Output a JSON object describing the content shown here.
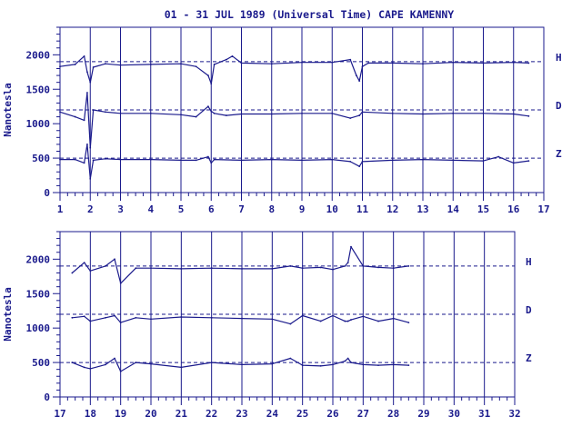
{
  "title": "01 - 31 JUL 1989 (Universal Time) CAPE KAMENNY",
  "colors": {
    "ink": "#1a1a8c",
    "background": "#ffffff"
  },
  "chart_data": [
    {
      "type": "line",
      "ylabel": "Nanotesla",
      "xlim": [
        1,
        17
      ],
      "ylim": [
        0,
        2400
      ],
      "x_ticks": [
        "1",
        "2",
        "3",
        "4",
        "5",
        "6",
        "7",
        "8",
        "9",
        "10",
        "11",
        "12",
        "13",
        "14",
        "15",
        "16",
        "17"
      ],
      "y_ticks": [
        "0",
        "500",
        "1000",
        "1500",
        "2000"
      ],
      "reference_levels": [
        1900,
        1200,
        500
      ],
      "series": [
        {
          "name": "H",
          "baseline": 1900,
          "x": [
            1.0,
            1.5,
            1.8,
            1.9,
            2.0,
            2.1,
            2.5,
            3.0,
            4.0,
            5.0,
            5.5,
            5.9,
            6.0,
            6.1,
            6.5,
            6.7,
            7.0,
            8.0,
            9.0,
            10.0,
            10.6,
            10.8,
            10.9,
            11.0,
            11.2,
            12.0,
            13.0,
            14.0,
            15.0,
            16.0,
            16.5
          ],
          "values": [
            1830,
            1860,
            1980,
            1750,
            1600,
            1820,
            1870,
            1850,
            1860,
            1870,
            1830,
            1700,
            1580,
            1860,
            1930,
            1980,
            1880,
            1870,
            1890,
            1890,
            1930,
            1700,
            1620,
            1830,
            1880,
            1880,
            1870,
            1890,
            1880,
            1890,
            1880
          ]
        },
        {
          "name": "D",
          "baseline": 1200,
          "x": [
            1.0,
            1.5,
            1.8,
            1.9,
            2.0,
            2.1,
            2.5,
            3.0,
            4.0,
            5.0,
            5.5,
            5.9,
            6.0,
            6.1,
            6.5,
            7.0,
            8.0,
            9.0,
            10.0,
            10.6,
            10.9,
            11.0,
            12.0,
            13.0,
            14.0,
            15.0,
            16.0,
            16.5
          ],
          "values": [
            1170,
            1100,
            1050,
            1450,
            650,
            1200,
            1170,
            1150,
            1150,
            1130,
            1100,
            1250,
            1180,
            1150,
            1120,
            1140,
            1140,
            1150,
            1150,
            1080,
            1120,
            1170,
            1150,
            1140,
            1150,
            1150,
            1140,
            1110
          ]
        },
        {
          "name": "Z",
          "baseline": 500,
          "x": [
            1.0,
            1.5,
            1.8,
            1.9,
            2.0,
            2.1,
            2.5,
            3.0,
            4.0,
            5.0,
            5.5,
            5.9,
            6.0,
            6.1,
            7.0,
            8.0,
            9.0,
            10.0,
            10.6,
            10.9,
            11.0,
            12.0,
            13.0,
            14.0,
            15.0,
            15.5,
            16.0,
            16.5
          ],
          "values": [
            480,
            480,
            430,
            700,
            200,
            470,
            490,
            480,
            480,
            470,
            470,
            520,
            430,
            480,
            470,
            480,
            470,
            480,
            450,
            380,
            450,
            470,
            480,
            470,
            460,
            520,
            430,
            460
          ]
        }
      ]
    },
    {
      "type": "line",
      "ylabel": "Nanotesla",
      "xlim": [
        17,
        32
      ],
      "ylim": [
        0,
        2400
      ],
      "x_ticks": [
        "17",
        "18",
        "19",
        "20",
        "21",
        "22",
        "23",
        "24",
        "25",
        "26",
        "27",
        "28",
        "29",
        "30",
        "31",
        "32"
      ],
      "y_ticks": [
        "0",
        "500",
        "1000",
        "1500",
        "2000"
      ],
      "reference_levels": [
        1900,
        1200,
        500
      ],
      "series": [
        {
          "name": "H",
          "baseline": 1900,
          "x": [
            17.4,
            17.8,
            18.0,
            18.5,
            18.8,
            19.0,
            19.5,
            20.0,
            21.0,
            22.0,
            23.0,
            24.0,
            24.6,
            25.0,
            25.6,
            26.0,
            26.4,
            26.5,
            26.6,
            27.0,
            27.5,
            28.0,
            28.5
          ],
          "values": [
            1800,
            1950,
            1830,
            1900,
            2000,
            1650,
            1870,
            1870,
            1860,
            1870,
            1860,
            1860,
            1900,
            1870,
            1880,
            1850,
            1900,
            1950,
            2180,
            1900,
            1880,
            1870,
            1900
          ]
        },
        {
          "name": "D",
          "baseline": 1200,
          "x": [
            17.4,
            17.8,
            18.0,
            18.5,
            18.8,
            19.0,
            19.5,
            20.0,
            21.0,
            22.0,
            23.0,
            24.0,
            24.6,
            25.0,
            25.6,
            26.0,
            26.4,
            26.5,
            26.6,
            27.0,
            27.5,
            28.0,
            28.5
          ],
          "values": [
            1150,
            1170,
            1100,
            1150,
            1180,
            1080,
            1150,
            1130,
            1160,
            1150,
            1140,
            1130,
            1060,
            1180,
            1100,
            1180,
            1100,
            1100,
            1120,
            1170,
            1100,
            1140,
            1080
          ]
        },
        {
          "name": "Z",
          "baseline": 500,
          "x": [
            17.4,
            17.8,
            18.0,
            18.5,
            18.8,
            19.0,
            19.5,
            20.0,
            21.0,
            22.0,
            23.0,
            24.0,
            24.6,
            25.0,
            25.6,
            26.0,
            26.4,
            26.5,
            26.6,
            27.0,
            27.5,
            28.0,
            28.5
          ],
          "values": [
            500,
            430,
            410,
            470,
            560,
            370,
            500,
            480,
            430,
            500,
            470,
            480,
            560,
            460,
            450,
            470,
            520,
            560,
            500,
            470,
            460,
            470,
            460
          ]
        }
      ]
    }
  ]
}
